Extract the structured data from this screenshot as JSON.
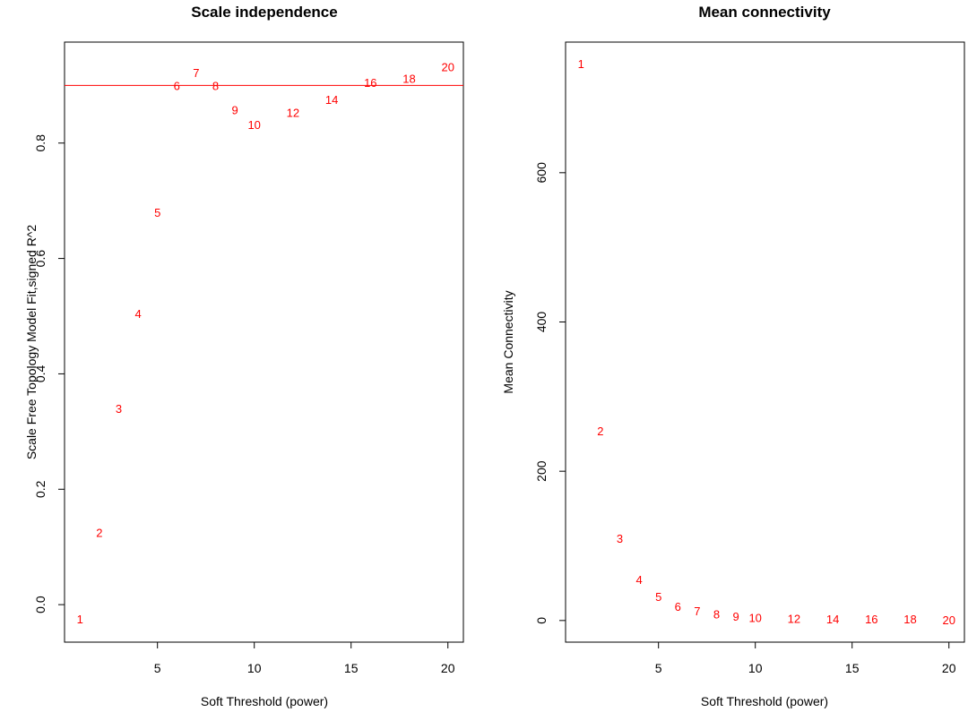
{
  "chart_data": [
    {
      "type": "scatter",
      "title": "Scale independence",
      "xlabel": "Soft Threshold (power)",
      "ylabel": "Scale Free Topology Model Fit,signed R^2",
      "xlim": [
        0.2,
        20.8
      ],
      "ylim": [
        -0.065,
        0.975
      ],
      "xticks": [
        5,
        10,
        15,
        20
      ],
      "yticks": [
        0.0,
        0.2,
        0.4,
        0.6,
        0.8
      ],
      "ytick_labels": [
        "0.0",
        "0.2",
        "0.4",
        "0.6",
        "0.8"
      ],
      "grid": false,
      "point_color": "#ff0000",
      "hline": {
        "y": 0.9,
        "color": "#ff0000"
      },
      "points": [
        {
          "label": "1",
          "x": 1,
          "y": -0.025
        },
        {
          "label": "2",
          "x": 2,
          "y": 0.125
        },
        {
          "label": "3",
          "x": 3,
          "y": 0.34
        },
        {
          "label": "4",
          "x": 4,
          "y": 0.505
        },
        {
          "label": "5",
          "x": 5,
          "y": 0.68
        },
        {
          "label": "6",
          "x": 6,
          "y": 0.9
        },
        {
          "label": "7",
          "x": 7,
          "y": 0.922
        },
        {
          "label": "8",
          "x": 8,
          "y": 0.9
        },
        {
          "label": "9",
          "x": 9,
          "y": 0.858
        },
        {
          "label": "10",
          "x": 10,
          "y": 0.832
        },
        {
          "label": "12",
          "x": 12,
          "y": 0.853
        },
        {
          "label": "14",
          "x": 14,
          "y": 0.876
        },
        {
          "label": "16",
          "x": 16,
          "y": 0.905
        },
        {
          "label": "18",
          "x": 18,
          "y": 0.912
        },
        {
          "label": "20",
          "x": 20,
          "y": 0.932
        }
      ]
    },
    {
      "type": "scatter",
      "title": "Mean connectivity",
      "xlabel": "Soft Threshold (power)",
      "ylabel": "Mean Connectivity",
      "xlim": [
        0.2,
        20.8
      ],
      "ylim": [
        -29,
        775
      ],
      "xticks": [
        5,
        10,
        15,
        20
      ],
      "yticks": [
        0,
        200,
        400,
        600
      ],
      "ytick_labels": [
        "0",
        "200",
        "400",
        "600"
      ],
      "grid": false,
      "point_color": "#ff0000",
      "points": [
        {
          "label": "1",
          "x": 1,
          "y": 746
        },
        {
          "label": "2",
          "x": 2,
          "y": 254
        },
        {
          "label": "3",
          "x": 3,
          "y": 110
        },
        {
          "label": "4",
          "x": 4,
          "y": 55
        },
        {
          "label": "5",
          "x": 5,
          "y": 32
        },
        {
          "label": "6",
          "x": 6,
          "y": 19
        },
        {
          "label": "7",
          "x": 7,
          "y": 13
        },
        {
          "label": "8",
          "x": 8,
          "y": 9
        },
        {
          "label": "9",
          "x": 9,
          "y": 6
        },
        {
          "label": "10",
          "x": 10,
          "y": 4
        },
        {
          "label": "12",
          "x": 12,
          "y": 3
        },
        {
          "label": "14",
          "x": 14,
          "y": 2
        },
        {
          "label": "16",
          "x": 16,
          "y": 2
        },
        {
          "label": "18",
          "x": 18,
          "y": 2
        },
        {
          "label": "20",
          "x": 20,
          "y": 1
        }
      ]
    }
  ]
}
